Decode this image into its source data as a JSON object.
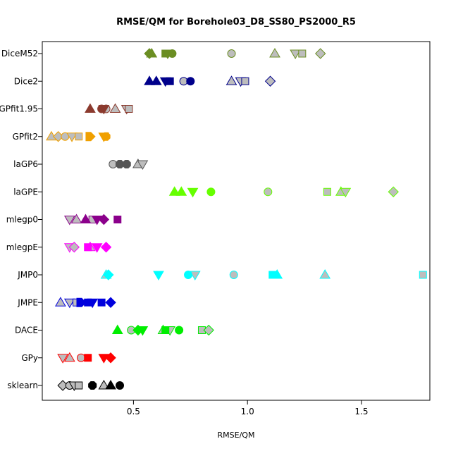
{
  "chart_data": {
    "type": "scatter",
    "title": "RMSE/QM for Borehole03_D8_SS80_PS2000_R5",
    "xlabel": "RMSE/QM",
    "ylabel": "",
    "xlim": [
      0.1,
      1.8
    ],
    "xticks": [
      0.5,
      1.0,
      1.5
    ],
    "xtick_labels": [
      "0.5",
      "1.0",
      "1.5"
    ],
    "grid": false,
    "categories": [
      "DiceM52",
      "Dice2",
      "GPfit1.95",
      "GPfit2",
      "laGP6",
      "laGPE",
      "mlegp0",
      "mlegpE",
      "JMP0",
      "JMPE",
      "DACE",
      "GPy",
      "sklearn"
    ],
    "colors": {
      "DiceM52": "#6b8e23",
      "Dice2": "#00008b",
      "GPfit1.95": "#8b3a2e",
      "GPfit2": "#f0a000",
      "laGP6": "#555555",
      "laGPE": "#66ff00",
      "mlegp0": "#8b008b",
      "mlegpE": "#ff00ff",
      "JMP0": "#00ffff",
      "JMPE": "#0000dd",
      "DACE": "#00ee00",
      "GPy": "#ff0000",
      "sklearn": "#000000"
    },
    "marker_shapes": [
      "circle",
      "triangle",
      "inverted-triangle",
      "square",
      "diamond",
      "hexagon",
      "arrow-right"
    ],
    "series": [
      {
        "category": "DiceM52",
        "points": [
          {
            "x": 0.57,
            "shape": "diamond",
            "filled": true
          },
          {
            "x": 0.58,
            "shape": "triangle",
            "filled": true
          },
          {
            "x": 0.64,
            "shape": "square",
            "filled": true
          },
          {
            "x": 0.65,
            "shape": "inverted-triangle",
            "filled": true
          },
          {
            "x": 0.67,
            "shape": "circle",
            "filled": true
          },
          {
            "x": 0.93,
            "shape": "circle",
            "filled": false
          },
          {
            "x": 1.12,
            "shape": "triangle",
            "filled": false
          },
          {
            "x": 1.21,
            "shape": "inverted-triangle",
            "filled": false
          },
          {
            "x": 1.24,
            "shape": "square",
            "filled": false
          },
          {
            "x": 1.32,
            "shape": "diamond",
            "filled": false
          }
        ]
      },
      {
        "category": "Dice2",
        "points": [
          {
            "x": 0.57,
            "shape": "triangle",
            "filled": true
          },
          {
            "x": 0.6,
            "shape": "triangle",
            "filled": true
          },
          {
            "x": 0.64,
            "shape": "inverted-triangle",
            "filled": true
          },
          {
            "x": 0.66,
            "shape": "square",
            "filled": true
          },
          {
            "x": 0.72,
            "shape": "circle",
            "filled": false
          },
          {
            "x": 0.75,
            "shape": "circle",
            "filled": true
          },
          {
            "x": 0.93,
            "shape": "triangle",
            "filled": false
          },
          {
            "x": 0.97,
            "shape": "inverted-triangle",
            "filled": false
          },
          {
            "x": 0.99,
            "shape": "square",
            "filled": false
          },
          {
            "x": 1.1,
            "shape": "diamond",
            "filled": false
          }
        ]
      },
      {
        "category": "GPfit1.95",
        "points": [
          {
            "x": 0.31,
            "shape": "triangle",
            "filled": true
          },
          {
            "x": 0.36,
            "shape": "circle",
            "filled": true
          },
          {
            "x": 0.37,
            "shape": "inverted-triangle",
            "filled": true
          },
          {
            "x": 0.38,
            "shape": "circle",
            "filled": false
          },
          {
            "x": 0.42,
            "shape": "triangle",
            "filled": false
          },
          {
            "x": 0.47,
            "shape": "inverted-triangle",
            "filled": false
          },
          {
            "x": 0.48,
            "shape": "square",
            "filled": false
          }
        ]
      },
      {
        "category": "GPfit2",
        "points": [
          {
            "x": 0.14,
            "shape": "triangle",
            "filled": false
          },
          {
            "x": 0.17,
            "shape": "diamond",
            "filled": false
          },
          {
            "x": 0.2,
            "shape": "circle",
            "filled": false
          },
          {
            "x": 0.23,
            "shape": "inverted-triangle",
            "filled": false
          },
          {
            "x": 0.26,
            "shape": "square",
            "filled": false
          },
          {
            "x": 0.31,
            "shape": "arrow-right",
            "filled": true
          },
          {
            "x": 0.37,
            "shape": "inverted-triangle",
            "filled": true
          },
          {
            "x": 0.38,
            "shape": "hexagon",
            "filled": true
          }
        ]
      },
      {
        "category": "laGP6",
        "points": [
          {
            "x": 0.41,
            "shape": "circle",
            "filled": false
          },
          {
            "x": 0.44,
            "shape": "hexagon",
            "filled": true
          },
          {
            "x": 0.47,
            "shape": "hexagon",
            "filled": true
          },
          {
            "x": 0.52,
            "shape": "triangle",
            "filled": false
          },
          {
            "x": 0.54,
            "shape": "inverted-triangle",
            "filled": false
          }
        ]
      },
      {
        "category": "laGPE",
        "points": [
          {
            "x": 0.68,
            "shape": "triangle",
            "filled": true
          },
          {
            "x": 0.71,
            "shape": "triangle",
            "filled": true
          },
          {
            "x": 0.76,
            "shape": "inverted-triangle",
            "filled": true
          },
          {
            "x": 0.84,
            "shape": "circle",
            "filled": true
          },
          {
            "x": 1.09,
            "shape": "circle",
            "filled": false
          },
          {
            "x": 1.35,
            "shape": "square",
            "filled": false
          },
          {
            "x": 1.41,
            "shape": "triangle",
            "filled": false
          },
          {
            "x": 1.43,
            "shape": "inverted-triangle",
            "filled": false
          },
          {
            "x": 1.64,
            "shape": "diamond",
            "filled": false
          }
        ]
      },
      {
        "category": "mlegp0",
        "points": [
          {
            "x": 0.22,
            "shape": "inverted-triangle",
            "filled": false
          },
          {
            "x": 0.25,
            "shape": "triangle",
            "filled": false
          },
          {
            "x": 0.29,
            "shape": "triangle",
            "filled": true
          },
          {
            "x": 0.32,
            "shape": "square",
            "filled": false
          },
          {
            "x": 0.34,
            "shape": "inverted-triangle",
            "filled": true
          },
          {
            "x": 0.37,
            "shape": "diamond",
            "filled": true
          },
          {
            "x": 0.43,
            "shape": "square",
            "filled": true
          }
        ]
      },
      {
        "category": "mlegpE",
        "points": [
          {
            "x": 0.22,
            "shape": "inverted-triangle",
            "filled": false
          },
          {
            "x": 0.24,
            "shape": "diamond",
            "filled": false
          },
          {
            "x": 0.3,
            "shape": "square",
            "filled": true
          },
          {
            "x": 0.31,
            "shape": "triangle",
            "filled": false
          },
          {
            "x": 0.34,
            "shape": "inverted-triangle",
            "filled": true
          },
          {
            "x": 0.38,
            "shape": "diamond",
            "filled": true
          }
        ]
      },
      {
        "category": "JMP0",
        "points": [
          {
            "x": 0.38,
            "shape": "triangle",
            "filled": false
          },
          {
            "x": 0.39,
            "shape": "diamond",
            "filled": true
          },
          {
            "x": 0.61,
            "shape": "inverted-triangle",
            "filled": true
          },
          {
            "x": 0.74,
            "shape": "circle",
            "filled": true
          },
          {
            "x": 0.77,
            "shape": "inverted-triangle",
            "filled": false
          },
          {
            "x": 0.94,
            "shape": "circle",
            "filled": false
          },
          {
            "x": 1.11,
            "shape": "square",
            "filled": true
          },
          {
            "x": 1.13,
            "shape": "triangle",
            "filled": true
          },
          {
            "x": 1.34,
            "shape": "triangle",
            "filled": false
          },
          {
            "x": 1.77,
            "shape": "square",
            "filled": false
          }
        ]
      },
      {
        "category": "JMPE",
        "points": [
          {
            "x": 0.18,
            "shape": "triangle",
            "filled": false
          },
          {
            "x": 0.22,
            "shape": "inverted-triangle",
            "filled": false
          },
          {
            "x": 0.25,
            "shape": "square",
            "filled": false
          },
          {
            "x": 0.27,
            "shape": "arrow-right",
            "filled": true
          },
          {
            "x": 0.3,
            "shape": "square",
            "filled": true
          },
          {
            "x": 0.32,
            "shape": "inverted-triangle",
            "filled": true
          },
          {
            "x": 0.36,
            "shape": "square",
            "filled": true
          },
          {
            "x": 0.4,
            "shape": "diamond",
            "filled": true
          }
        ]
      },
      {
        "category": "DACE",
        "points": [
          {
            "x": 0.43,
            "shape": "triangle",
            "filled": true
          },
          {
            "x": 0.49,
            "shape": "circle",
            "filled": false
          },
          {
            "x": 0.52,
            "shape": "diamond",
            "filled": true
          },
          {
            "x": 0.54,
            "shape": "inverted-triangle",
            "filled": true
          },
          {
            "x": 0.63,
            "shape": "triangle",
            "filled": false
          },
          {
            "x": 0.64,
            "shape": "square",
            "filled": true
          },
          {
            "x": 0.66,
            "shape": "inverted-triangle",
            "filled": false
          },
          {
            "x": 0.7,
            "shape": "circle",
            "filled": true
          },
          {
            "x": 0.8,
            "shape": "square",
            "filled": false
          },
          {
            "x": 0.83,
            "shape": "diamond",
            "filled": false
          }
        ]
      },
      {
        "category": "GPy",
        "points": [
          {
            "x": 0.19,
            "shape": "inverted-triangle",
            "filled": false
          },
          {
            "x": 0.22,
            "shape": "triangle",
            "filled": false
          },
          {
            "x": 0.27,
            "shape": "circle",
            "filled": false
          },
          {
            "x": 0.3,
            "shape": "square",
            "filled": true
          },
          {
            "x": 0.37,
            "shape": "inverted-triangle",
            "filled": true
          },
          {
            "x": 0.4,
            "shape": "diamond",
            "filled": true
          }
        ]
      },
      {
        "category": "sklearn",
        "points": [
          {
            "x": 0.19,
            "shape": "diamond",
            "filled": false
          },
          {
            "x": 0.22,
            "shape": "circle",
            "filled": false
          },
          {
            "x": 0.24,
            "shape": "inverted-triangle",
            "filled": false
          },
          {
            "x": 0.26,
            "shape": "square",
            "filled": false
          },
          {
            "x": 0.32,
            "shape": "hexagon",
            "filled": true
          },
          {
            "x": 0.37,
            "shape": "triangle",
            "filled": false
          },
          {
            "x": 0.4,
            "shape": "triangle",
            "filled": true
          },
          {
            "x": 0.44,
            "shape": "circle",
            "filled": true
          }
        ]
      }
    ]
  }
}
